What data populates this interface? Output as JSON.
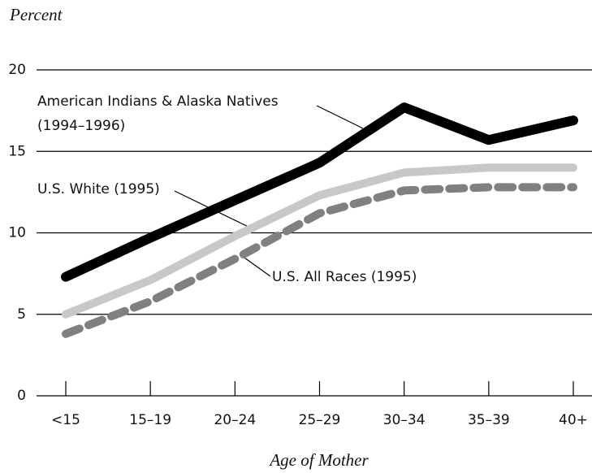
{
  "chart_data": {
    "type": "line",
    "y_label": "Percent",
    "x_label": "Age of Mother",
    "categories": [
      "<15",
      "15–19",
      "20–24",
      "25–29",
      "30–34",
      "35–39",
      "40+"
    ],
    "series": [
      {
        "name": "American Indians & Alaska Natives\n(1994–1996)",
        "color": "#000000",
        "style": "solid",
        "values": [
          7.3,
          9.7,
          12.0,
          14.3,
          17.7,
          15.7,
          16.9
        ]
      },
      {
        "name": "U.S. White (1995)",
        "color": "#c8c8c8",
        "style": "solid",
        "values": [
          5.0,
          7.1,
          9.8,
          12.3,
          13.7,
          14.0,
          14.0
        ]
      },
      {
        "name": "U.S. All Races (1995)",
        "color": "#808080",
        "style": "dashed",
        "values": [
          3.8,
          5.8,
          8.4,
          11.2,
          12.6,
          12.8,
          12.8
        ]
      }
    ],
    "ylim": [
      0,
      20
    ],
    "yticks": [
      0,
      5,
      10,
      15,
      20
    ],
    "grid": true
  }
}
